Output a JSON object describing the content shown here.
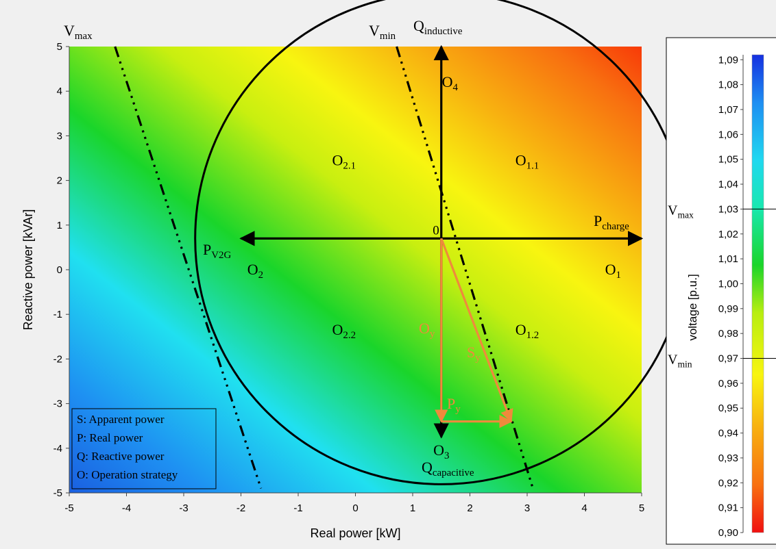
{
  "chart_data": [
    {
      "type": "heatmap",
      "xlabel": "Real power [kW]",
      "ylabel": "Reactive power [kVAr]",
      "xlim": [
        -5,
        5
      ],
      "ylim": [
        -5,
        5
      ],
      "x_ticks": [
        "-5",
        "-4",
        "-3",
        "-2",
        "-1",
        "0",
        "1",
        "2",
        "3",
        "4",
        "5"
      ],
      "y_ticks": [
        "-5",
        "-4",
        "-3",
        "-2",
        "-1",
        "0",
        "1",
        "2",
        "3",
        "4",
        "5"
      ],
      "background_colormap": "jet (voltage, reversed: blue = high, red = low)",
      "circle": {
        "center": [
          1.5,
          0.7
        ],
        "radius": 4.3
      },
      "origin_label": "0",
      "lines": [
        {
          "label_main": "V",
          "label_sub": "max",
          "points": [
            [
              -4.2,
              5.0
            ],
            [
              -1.65,
              -4.9
            ]
          ]
        },
        {
          "label_main": "V",
          "label_sub": "min",
          "points": [
            [
              0.72,
              5.0
            ],
            [
              3.1,
              -4.9
            ]
          ]
        }
      ],
      "axes_arrows": [
        {
          "label_main": "P",
          "label_sub": "charge",
          "from": [
            1.5,
            0.7
          ],
          "to": [
            5.0,
            0.7
          ]
        },
        {
          "label_main": "P",
          "label_sub": "V2G",
          "from": [
            1.5,
            0.7
          ],
          "to": [
            -2.0,
            0.7
          ]
        },
        {
          "label_main": "Q",
          "label_sub": "inductive",
          "from": [
            1.5,
            0.7
          ],
          "to": [
            1.5,
            5.0
          ]
        },
        {
          "label_main": "Q",
          "label_sub": "capacitive",
          "from": [
            1.5,
            0.7
          ],
          "to": [
            1.5,
            -3.75
          ]
        }
      ],
      "example_vectors": [
        {
          "label_main": "O",
          "label_sub": "y",
          "from": [
            1.5,
            0.7
          ],
          "to": [
            1.5,
            -3.4
          ],
          "color": "#ef8a3c"
        },
        {
          "label_main": "P",
          "label_sub": "y",
          "from": [
            1.5,
            -3.4
          ],
          "to": [
            2.72,
            -3.4
          ],
          "color": "#ef8a3c"
        },
        {
          "label_main": "S",
          "label_sub": "y",
          "from": [
            1.5,
            0.7
          ],
          "to": [
            2.72,
            -3.4
          ],
          "color": "#ef8a3c"
        }
      ],
      "region_labels": [
        {
          "main": "O",
          "sub": "4",
          "at": [
            1.65,
            4.2
          ]
        },
        {
          "main": "O",
          "sub": "2.1",
          "at": [
            -0.2,
            2.45
          ]
        },
        {
          "main": "O",
          "sub": "1.1",
          "at": [
            3.0,
            2.45
          ]
        },
        {
          "main": "O",
          "sub": "2",
          "at": [
            -1.75,
            0.0
          ]
        },
        {
          "main": "O",
          "sub": "1",
          "at": [
            4.5,
            0.0
          ]
        },
        {
          "main": "O",
          "sub": "2.2",
          "at": [
            -0.2,
            -1.35
          ]
        },
        {
          "main": "O",
          "sub": "1.2",
          "at": [
            3.0,
            -1.35
          ]
        },
        {
          "main": "O",
          "sub": "3",
          "at": [
            1.5,
            -4.05
          ]
        }
      ],
      "legend_box": {
        "placement": "bottom-left",
        "entries": [
          "S: Apparent power",
          "P: Real power",
          "Q: Reactive power",
          "O: Operation strategy"
        ]
      }
    },
    {
      "type": "colorbar",
      "ylabel": "voltage [p.u.]",
      "ticks": [
        "1,09",
        "1,08",
        "1,07",
        "1,06",
        "1,05",
        "1,04",
        "1,03",
        "1,02",
        "1,01",
        "1,00",
        "0,99",
        "0,98",
        "0,97",
        "0,96",
        "0,95",
        "0,94",
        "0,93",
        "0,92",
        "0,91",
        "0,90"
      ],
      "range": [
        0.9,
        1.092
      ],
      "markers": [
        {
          "label_main": "V",
          "label_sub": "max",
          "value": 1.03
        },
        {
          "label_main": "V",
          "label_sub": "min",
          "value": 0.97
        }
      ]
    }
  ]
}
